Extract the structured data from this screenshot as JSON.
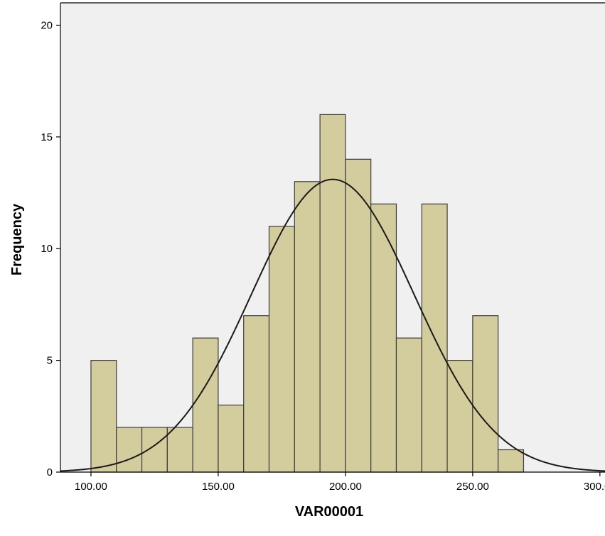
{
  "chart_data": {
    "type": "bar",
    "subtype": "histogram",
    "xlabel": "VAR00001",
    "ylabel": "Frequency",
    "xlim": [
      88,
      302
    ],
    "ylim": [
      0,
      21
    ],
    "x_ticks": [
      100,
      150,
      200,
      250,
      300
    ],
    "x_tick_labels": [
      "100.00",
      "150.00",
      "200.00",
      "250.00",
      "300.00"
    ],
    "y_ticks": [
      0,
      5,
      10,
      15,
      20
    ],
    "y_tick_labels": [
      "0",
      "5",
      "10",
      "15",
      "20"
    ],
    "bins": [
      {
        "start": 100,
        "end": 110,
        "count": 5
      },
      {
        "start": 110,
        "end": 120,
        "count": 2
      },
      {
        "start": 120,
        "end": 130,
        "count": 2
      },
      {
        "start": 130,
        "end": 140,
        "count": 2
      },
      {
        "start": 140,
        "end": 150,
        "count": 6
      },
      {
        "start": 150,
        "end": 160,
        "count": 3
      },
      {
        "start": 160,
        "end": 170,
        "count": 7
      },
      {
        "start": 170,
        "end": 180,
        "count": 11
      },
      {
        "start": 180,
        "end": 190,
        "count": 13
      },
      {
        "start": 190,
        "end": 200,
        "count": 16
      },
      {
        "start": 200,
        "end": 210,
        "count": 14
      },
      {
        "start": 210,
        "end": 220,
        "count": 12
      },
      {
        "start": 220,
        "end": 230,
        "count": 6
      },
      {
        "start": 230,
        "end": 240,
        "count": 12
      },
      {
        "start": 240,
        "end": 250,
        "count": 5
      },
      {
        "start": 250,
        "end": 260,
        "count": 7
      },
      {
        "start": 260,
        "end": 270,
        "count": 1
      }
    ],
    "normal_curve": {
      "mean": 195,
      "std": 32,
      "peak": 13.1
    },
    "grid": false,
    "colors": {
      "plot_background": "#f0f0f0",
      "bar_fill": "#d3cd9d",
      "bar_stroke": "#3d3d3d",
      "curve": "#1a1a1a",
      "axis": "#000000"
    }
  }
}
